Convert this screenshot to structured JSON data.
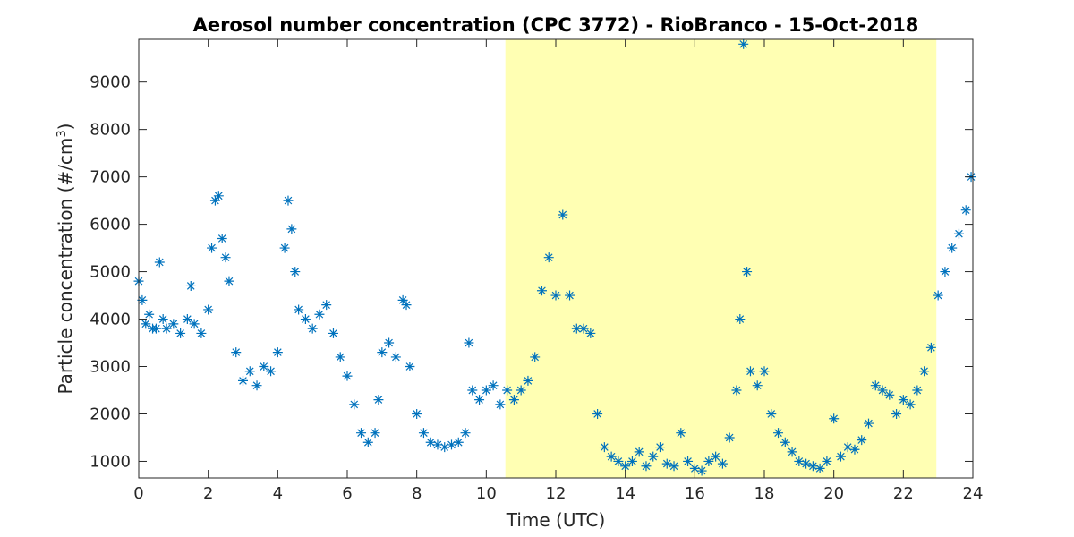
{
  "chart_data": {
    "type": "scatter",
    "title": "Aerosol number concentration (CPC 3772) - RioBranco - 15-Oct-2018",
    "xlabel": "Time (UTC)",
    "ylabel_main": "Particle concentration (#/cm",
    "ylabel_sup": "3",
    "ylabel_close": ")",
    "xlim": [
      0,
      24
    ],
    "ylim": [
      650,
      9900
    ],
    "xticks": [
      "0",
      "2",
      "4",
      "6",
      "8",
      "10",
      "12",
      "14",
      "16",
      "18",
      "20",
      "22",
      "24"
    ],
    "yticks": [
      "1000",
      "2000",
      "3000",
      "4000",
      "5000",
      "6000",
      "7000",
      "8000",
      "9000"
    ],
    "grid": false,
    "marker": "asterisk",
    "series_color": "#0072BD",
    "highlight": {
      "x_start": 10.55,
      "x_end": 22.95,
      "color": "#FFFFB3"
    },
    "series": [
      {
        "x": [
          0.0,
          0.1,
          0.2,
          0.3,
          0.4,
          0.5,
          0.6,
          0.7,
          0.8,
          1.0,
          1.2,
          1.4,
          1.5,
          1.6,
          1.8,
          2.0,
          2.1,
          2.2,
          2.3,
          2.4,
          2.5,
          2.6,
          2.8,
          3.0,
          3.2,
          3.4,
          3.6,
          3.8,
          4.0,
          4.2,
          4.3,
          4.4,
          4.5,
          4.6,
          4.8,
          5.0,
          5.2,
          5.4,
          5.6,
          5.8,
          6.0,
          6.2,
          6.4,
          6.6,
          6.8,
          6.9,
          7.0,
          7.2,
          7.4,
          7.6,
          7.7,
          7.8,
          8.0,
          8.2,
          8.4,
          8.6,
          8.8,
          9.0,
          9.2,
          9.4,
          9.5,
          9.6,
          9.8,
          10.0,
          10.2,
          10.4,
          10.6,
          10.8,
          11.0,
          11.2,
          11.4,
          11.6,
          11.8,
          12.0,
          12.2,
          12.4,
          12.6,
          12.8,
          13.0,
          13.2,
          13.4,
          13.6,
          13.8,
          14.0,
          14.2,
          14.4,
          14.6,
          14.8,
          15.0,
          15.2,
          15.4,
          15.6,
          15.8,
          16.0,
          16.2,
          16.4,
          16.6,
          16.8,
          17.0,
          17.2,
          17.3,
          17.4,
          17.5,
          17.6,
          17.8,
          18.0,
          18.2,
          18.4,
          18.6,
          18.8,
          19.0,
          19.2,
          19.4,
          19.6,
          19.8,
          20.0,
          20.2,
          20.4,
          20.6,
          20.8,
          21.0,
          21.2,
          21.4,
          21.6,
          21.8,
          22.0,
          22.2,
          22.4,
          22.6,
          22.8,
          23.0,
          23.2,
          23.4,
          23.6,
          23.8,
          23.95
        ],
        "y": [
          4800,
          4400,
          3900,
          4100,
          3800,
          3800,
          5200,
          4000,
          3800,
          3900,
          3700,
          4000,
          4700,
          3900,
          3700,
          4200,
          5500,
          6500,
          6600,
          5700,
          5300,
          4800,
          3300,
          2700,
          2900,
          2600,
          3000,
          2900,
          3300,
          5500,
          6500,
          5900,
          5000,
          4200,
          4000,
          3800,
          4100,
          4300,
          3700,
          3200,
          2800,
          2200,
          1600,
          1400,
          1600,
          2300,
          3300,
          3500,
          3200,
          4400,
          4300,
          3000,
          2000,
          1600,
          1400,
          1350,
          1300,
          1350,
          1400,
          1600,
          3500,
          2500,
          2300,
          2500,
          2600,
          2200,
          2500,
          2300,
          2500,
          2700,
          3200,
          4600,
          5300,
          4500,
          6200,
          4500,
          3800,
          3800,
          3700,
          2000,
          1300,
          1100,
          1000,
          900,
          1000,
          1200,
          900,
          1100,
          1300,
          950,
          900,
          1600,
          1000,
          850,
          800,
          1000,
          1100,
          950,
          1500,
          2500,
          4000,
          9800,
          5000,
          2900,
          2600,
          2900,
          2000,
          1600,
          1400,
          1200,
          1000,
          950,
          900,
          850,
          1000,
          1900,
          1100,
          1300,
          1250,
          1450,
          1800,
          2600,
          2500,
          2400,
          2000,
          2300,
          2200,
          2500,
          2900,
          3400,
          4500,
          5000,
          5500,
          5800,
          6300,
          7000
        ]
      }
    ]
  }
}
